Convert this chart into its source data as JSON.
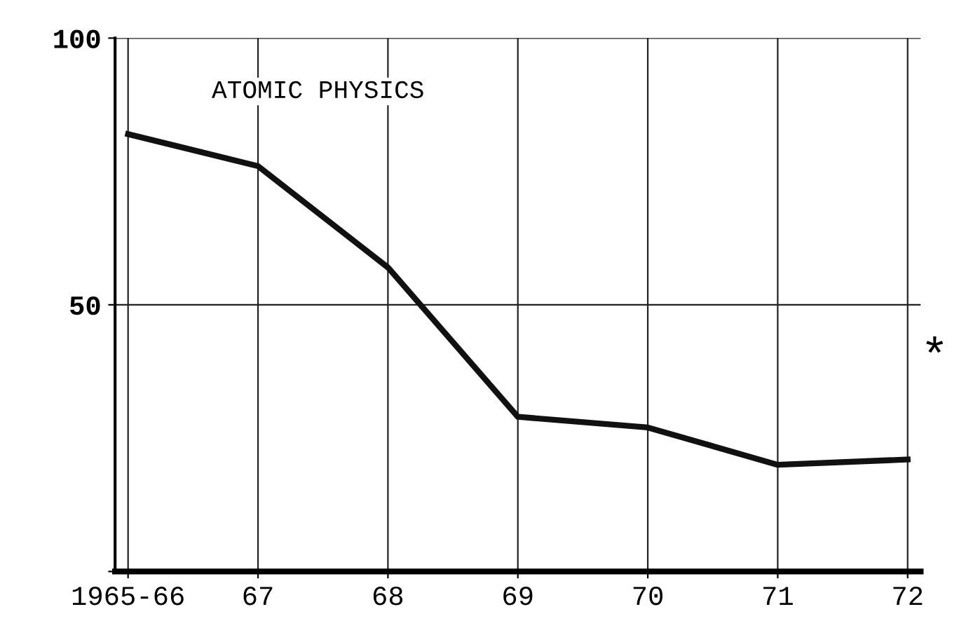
{
  "chart_data": {
    "type": "line",
    "title": "ATOMIC PHYSICS",
    "categories": [
      "1965-66",
      "67",
      "68",
      "69",
      "70",
      "71",
      "72"
    ],
    "series": [
      {
        "color": "#111111",
        "values": [
          82,
          76,
          57,
          29,
          27,
          20,
          21
        ]
      }
    ],
    "ylim": [
      0,
      100
    ],
    "yticks": [
      {
        "value": 0,
        "label": null
      },
      50,
      100
    ],
    "grid": true,
    "marker": "none",
    "line_style": "solid",
    "annotations": [
      "*"
    ]
  }
}
